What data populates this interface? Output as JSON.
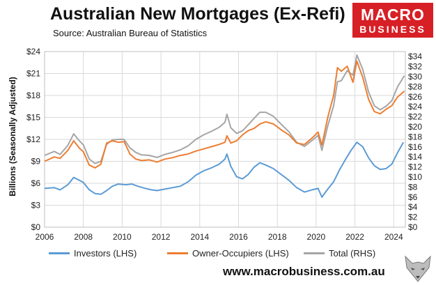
{
  "header": {
    "title": "Australian New Mortgages (Ex-Refi)",
    "subtitle": "Source: Australian Bureau of Statistics",
    "logo_line1": "MACRO",
    "logo_line2": "BUSINESS"
  },
  "footer": {
    "url": "www.macrobusiness.com.au"
  },
  "colors": {
    "investors": "#5b9bd5",
    "owner_occupiers": "#ed7d31",
    "total": "#a5a5a5",
    "logo_red": "#d71f26",
    "grid": "#d9d9d9"
  },
  "chart_data": {
    "type": "line",
    "title": "Australian New Mortgages (Ex-Refi)",
    "ylabel": "Billions (Seasonally Adjusted)",
    "grid": true,
    "legend_position": "bottom",
    "xlim": [
      2006,
      2024.6
    ],
    "ylim_left": [
      0,
      24
    ],
    "ylim_right": [
      0,
      35
    ],
    "x_ticks": [
      "2006",
      "2008",
      "2010",
      "2012",
      "2014",
      "2016",
      "2018",
      "2020",
      "2022",
      "2024"
    ],
    "y_ticks_left": [
      "$0",
      "$3",
      "$6",
      "$9",
      "$12",
      "$15",
      "$18",
      "$21",
      "$24"
    ],
    "y_ticks_right": [
      "$0",
      "$2",
      "$4",
      "$6",
      "$8",
      "$10",
      "$12",
      "$14",
      "$16",
      "$18",
      "$20",
      "$22",
      "$24",
      "$26",
      "$28",
      "$30",
      "$32",
      "$34"
    ],
    "series": [
      {
        "name": "Investors (LHS)",
        "axis": "left",
        "points": [
          [
            2006.0,
            5.3
          ],
          [
            2006.5,
            5.4
          ],
          [
            2006.8,
            5.1
          ],
          [
            2007.2,
            5.8
          ],
          [
            2007.5,
            6.8
          ],
          [
            2007.8,
            6.4
          ],
          [
            2008.0,
            6.1
          ],
          [
            2008.3,
            5.1
          ],
          [
            2008.6,
            4.6
          ],
          [
            2008.9,
            4.5
          ],
          [
            2009.2,
            5.0
          ],
          [
            2009.5,
            5.6
          ],
          [
            2009.8,
            5.9
          ],
          [
            2010.2,
            5.8
          ],
          [
            2010.5,
            5.9
          ],
          [
            2010.8,
            5.6
          ],
          [
            2011.2,
            5.3
          ],
          [
            2011.5,
            5.1
          ],
          [
            2011.8,
            5.0
          ],
          [
            2012.2,
            5.2
          ],
          [
            2012.6,
            5.4
          ],
          [
            2013.0,
            5.6
          ],
          [
            2013.4,
            6.2
          ],
          [
            2013.8,
            7.1
          ],
          [
            2014.2,
            7.7
          ],
          [
            2014.6,
            8.1
          ],
          [
            2015.0,
            8.6
          ],
          [
            2015.3,
            9.3
          ],
          [
            2015.4,
            10.0
          ],
          [
            2015.6,
            8.3
          ],
          [
            2015.9,
            6.9
          ],
          [
            2016.2,
            6.6
          ],
          [
            2016.5,
            7.2
          ],
          [
            2016.8,
            8.2
          ],
          [
            2017.1,
            8.8
          ],
          [
            2017.4,
            8.5
          ],
          [
            2017.8,
            8.0
          ],
          [
            2018.2,
            7.2
          ],
          [
            2018.6,
            6.4
          ],
          [
            2019.0,
            5.4
          ],
          [
            2019.4,
            4.8
          ],
          [
            2019.8,
            5.1
          ],
          [
            2020.1,
            5.3
          ],
          [
            2020.3,
            4.1
          ],
          [
            2020.6,
            5.2
          ],
          [
            2020.9,
            6.2
          ],
          [
            2021.2,
            7.8
          ],
          [
            2021.5,
            9.2
          ],
          [
            2021.8,
            10.5
          ],
          [
            2022.1,
            11.6
          ],
          [
            2022.4,
            11.0
          ],
          [
            2022.7,
            9.5
          ],
          [
            2023.0,
            8.4
          ],
          [
            2023.3,
            7.9
          ],
          [
            2023.6,
            8.0
          ],
          [
            2023.9,
            8.6
          ],
          [
            2024.2,
            10.2
          ],
          [
            2024.5,
            11.6
          ]
        ]
      },
      {
        "name": "Owner-Occupiers (LHS)",
        "axis": "left",
        "points": [
          [
            2006.0,
            9.0
          ],
          [
            2006.5,
            9.6
          ],
          [
            2006.8,
            9.4
          ],
          [
            2007.2,
            10.5
          ],
          [
            2007.5,
            11.8
          ],
          [
            2007.8,
            10.8
          ],
          [
            2008.0,
            10.3
          ],
          [
            2008.3,
            8.5
          ],
          [
            2008.6,
            8.1
          ],
          [
            2008.9,
            8.6
          ],
          [
            2009.2,
            11.5
          ],
          [
            2009.5,
            11.8
          ],
          [
            2009.8,
            11.6
          ],
          [
            2010.1,
            11.7
          ],
          [
            2010.4,
            10.0
          ],
          [
            2010.7,
            9.3
          ],
          [
            2011.0,
            9.1
          ],
          [
            2011.4,
            9.2
          ],
          [
            2011.8,
            8.9
          ],
          [
            2012.2,
            9.3
          ],
          [
            2012.6,
            9.5
          ],
          [
            2013.0,
            9.8
          ],
          [
            2013.4,
            10.0
          ],
          [
            2013.8,
            10.4
          ],
          [
            2014.2,
            10.7
          ],
          [
            2014.6,
            11.0
          ],
          [
            2015.0,
            11.3
          ],
          [
            2015.3,
            11.6
          ],
          [
            2015.4,
            12.5
          ],
          [
            2015.6,
            11.5
          ],
          [
            2015.9,
            11.8
          ],
          [
            2016.2,
            12.6
          ],
          [
            2016.5,
            13.2
          ],
          [
            2016.8,
            13.5
          ],
          [
            2017.1,
            14.1
          ],
          [
            2017.4,
            14.4
          ],
          [
            2017.8,
            14.1
          ],
          [
            2018.2,
            13.3
          ],
          [
            2018.6,
            12.6
          ],
          [
            2019.0,
            11.5
          ],
          [
            2019.4,
            11.3
          ],
          [
            2019.8,
            12.2
          ],
          [
            2020.1,
            13.0
          ],
          [
            2020.3,
            11.2
          ],
          [
            2020.6,
            15.0
          ],
          [
            2020.9,
            18.0
          ],
          [
            2021.1,
            21.8
          ],
          [
            2021.3,
            21.3
          ],
          [
            2021.6,
            22.0
          ],
          [
            2021.9,
            19.8
          ],
          [
            2022.1,
            22.7
          ],
          [
            2022.4,
            20.5
          ],
          [
            2022.7,
            17.5
          ],
          [
            2023.0,
            15.8
          ],
          [
            2023.3,
            15.5
          ],
          [
            2023.6,
            16.1
          ],
          [
            2023.9,
            16.6
          ],
          [
            2024.2,
            17.8
          ],
          [
            2024.55,
            18.6
          ]
        ]
      },
      {
        "name": "Total (RHS)",
        "axis": "right",
        "points": [
          [
            2006.0,
            14.3
          ],
          [
            2006.5,
            15.1
          ],
          [
            2006.8,
            14.5
          ],
          [
            2007.2,
            16.3
          ],
          [
            2007.5,
            18.6
          ],
          [
            2007.8,
            17.2
          ],
          [
            2008.0,
            16.4
          ],
          [
            2008.3,
            13.6
          ],
          [
            2008.6,
            12.7
          ],
          [
            2008.9,
            13.1
          ],
          [
            2009.2,
            16.5
          ],
          [
            2009.5,
            17.4
          ],
          [
            2009.8,
            17.5
          ],
          [
            2010.1,
            17.5
          ],
          [
            2010.4,
            15.8
          ],
          [
            2010.7,
            14.9
          ],
          [
            2011.0,
            14.4
          ],
          [
            2011.4,
            14.3
          ],
          [
            2011.8,
            13.9
          ],
          [
            2012.2,
            14.5
          ],
          [
            2012.6,
            14.9
          ],
          [
            2013.0,
            15.4
          ],
          [
            2013.4,
            16.2
          ],
          [
            2013.8,
            17.5
          ],
          [
            2014.2,
            18.4
          ],
          [
            2014.6,
            19.1
          ],
          [
            2015.0,
            19.9
          ],
          [
            2015.3,
            20.9
          ],
          [
            2015.4,
            22.5
          ],
          [
            2015.6,
            19.8
          ],
          [
            2015.9,
            18.7
          ],
          [
            2016.2,
            19.2
          ],
          [
            2016.5,
            20.4
          ],
          [
            2016.8,
            21.7
          ],
          [
            2017.1,
            22.9
          ],
          [
            2017.4,
            22.9
          ],
          [
            2017.8,
            22.1
          ],
          [
            2018.2,
            20.5
          ],
          [
            2018.6,
            19.0
          ],
          [
            2019.0,
            16.9
          ],
          [
            2019.4,
            16.1
          ],
          [
            2019.8,
            17.3
          ],
          [
            2020.1,
            18.3
          ],
          [
            2020.3,
            15.3
          ],
          [
            2020.6,
            20.2
          ],
          [
            2020.9,
            24.2
          ],
          [
            2021.1,
            29.0
          ],
          [
            2021.3,
            29.2
          ],
          [
            2021.6,
            31.2
          ],
          [
            2021.9,
            30.3
          ],
          [
            2022.1,
            34.3
          ],
          [
            2022.4,
            31.5
          ],
          [
            2022.7,
            27.0
          ],
          [
            2023.0,
            24.2
          ],
          [
            2023.3,
            23.4
          ],
          [
            2023.6,
            24.1
          ],
          [
            2023.9,
            25.2
          ],
          [
            2024.2,
            28.0
          ],
          [
            2024.55,
            30.2
          ]
        ]
      }
    ]
  }
}
